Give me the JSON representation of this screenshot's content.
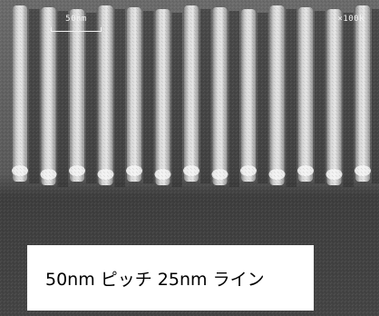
{
  "image": {
    "scale_bar_label": "50nm",
    "magnification_label": "×100k",
    "caption": "50nm ピッチ 25nm ライン"
  },
  "colors": {
    "background": "#4a4a4a",
    "line_highlight": "#d9d9d9",
    "trench_dark": "#2a2a2a",
    "caption_box": "#ffffff",
    "caption_text": "#000000"
  }
}
